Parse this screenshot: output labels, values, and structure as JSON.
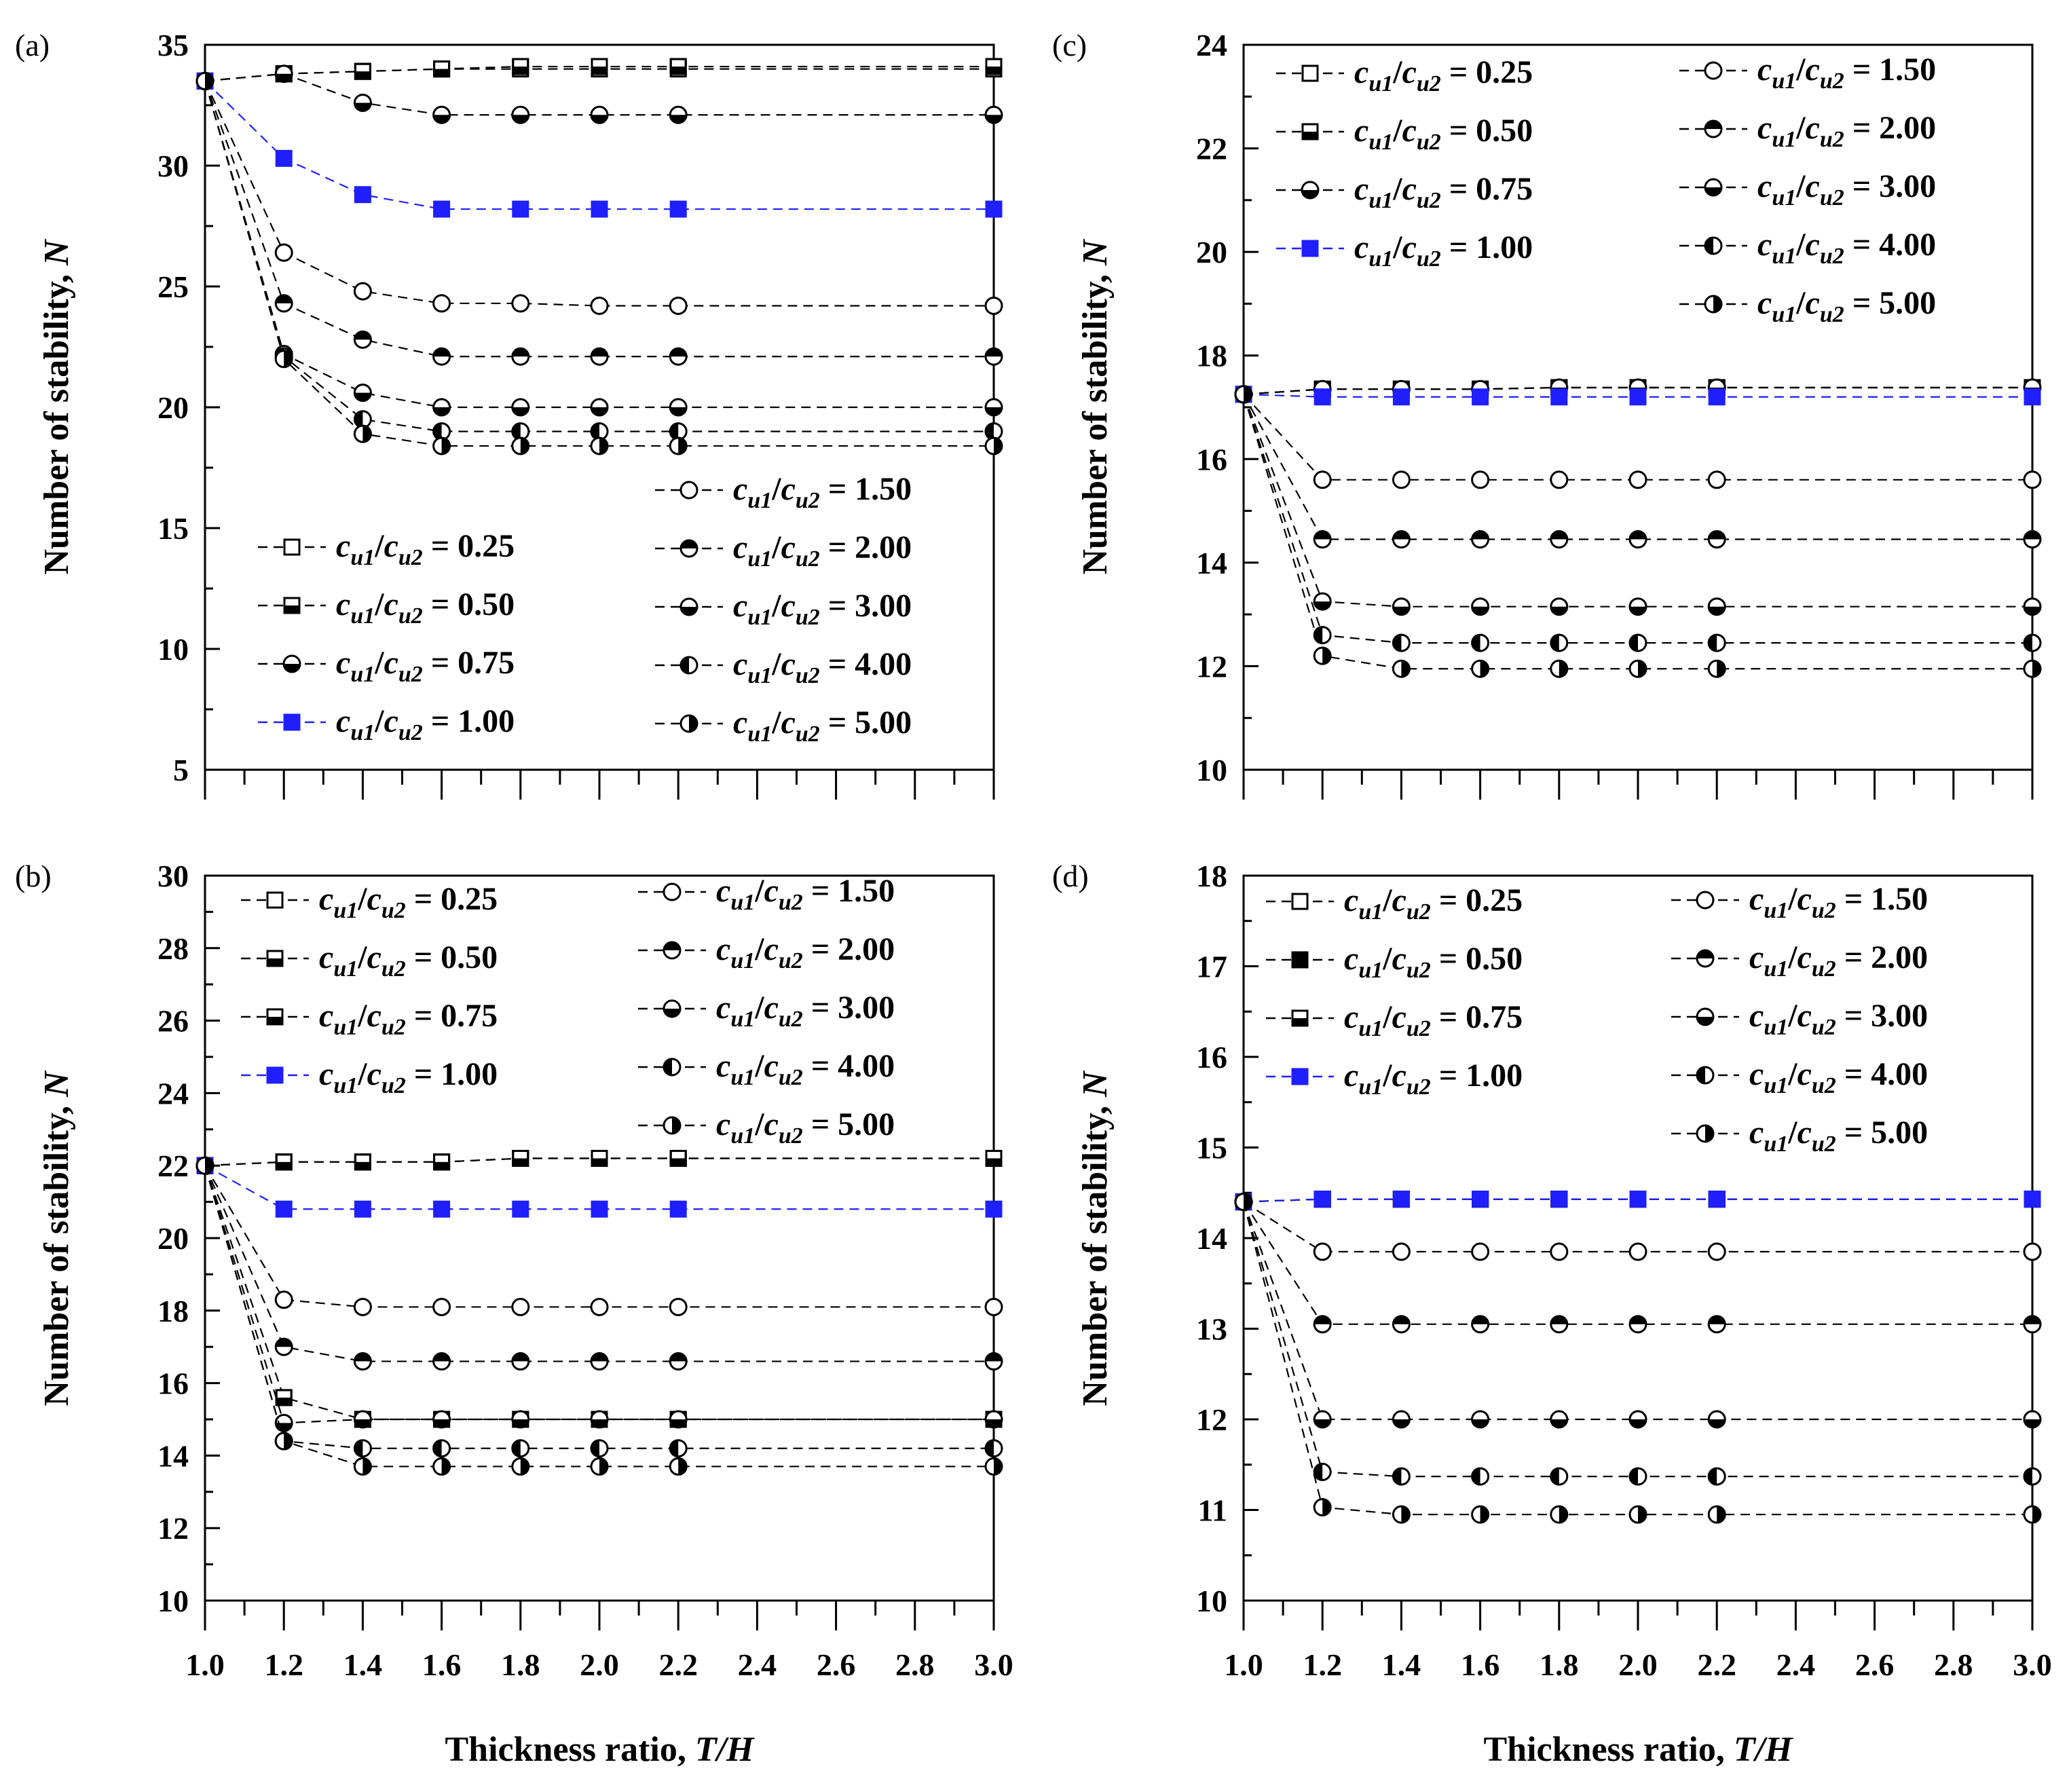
{
  "chart_data": [
    {
      "panel": "(a)",
      "type": "line",
      "xlabel": "Thickness ratio, T/H",
      "ylabel": "Number of stability, N",
      "x": [
        1.0,
        1.2,
        1.4,
        1.6,
        1.8,
        2.0,
        2.2,
        3.0
      ],
      "ylim": [
        5,
        35
      ],
      "yticks": [
        "5",
        "10",
        "15",
        "20",
        "25",
        "30",
        "35"
      ],
      "xticks": [],
      "legend": {
        "left": [
          0,
          1,
          2,
          3
        ],
        "right": [
          4,
          5,
          6,
          7,
          8
        ]
      },
      "series": [
        {
          "name": "0.25",
          "marker": "square-open",
          "color": "#000000",
          "values": [
            33.5,
            33.8,
            33.9,
            34.0,
            34.0,
            34.0,
            34.0,
            34.0
          ]
        },
        {
          "name": "0.50",
          "marker": "square-bottom",
          "color": "#000000",
          "values": [
            33.5,
            33.8,
            33.9,
            34.0,
            34.1,
            34.1,
            34.1,
            34.1
          ]
        },
        {
          "name": "0.75",
          "marker": "circle-bottom",
          "color": "#000000",
          "values": [
            33.5,
            33.8,
            32.6,
            32.1,
            32.1,
            32.1,
            32.1,
            32.1
          ]
        },
        {
          "name": "1.00",
          "marker": "square-filled",
          "color": "#1f1fff",
          "values": [
            33.5,
            30.3,
            28.8,
            28.2,
            28.2,
            28.2,
            28.2,
            28.2
          ]
        },
        {
          "name": "1.50",
          "marker": "circle-open",
          "color": "#000000",
          "values": [
            33.5,
            26.4,
            24.8,
            24.3,
            24.3,
            24.2,
            24.2,
            24.2
          ]
        },
        {
          "name": "2.00",
          "marker": "circle-top",
          "color": "#000000",
          "values": [
            33.5,
            24.3,
            22.8,
            22.1,
            22.1,
            22.1,
            22.1,
            22.1
          ]
        },
        {
          "name": "3.00",
          "marker": "circle-bottom",
          "color": "#000000",
          "values": [
            33.5,
            22.2,
            20.6,
            20.0,
            20.0,
            20.0,
            20.0,
            20.0
          ]
        },
        {
          "name": "4.00",
          "marker": "circle-left",
          "color": "#000000",
          "values": [
            33.5,
            22.1,
            19.5,
            19.0,
            19.0,
            19.0,
            19.0,
            19.0
          ]
        },
        {
          "name": "5.00",
          "marker": "circle-right",
          "color": "#000000",
          "values": [
            33.5,
            22.0,
            18.9,
            18.4,
            18.4,
            18.4,
            18.4,
            18.4
          ]
        }
      ]
    },
    {
      "panel": "(b)",
      "type": "line",
      "xlabel": "Thickness ratio, T/H",
      "ylabel": "Number of stability, N",
      "x": [
        1.0,
        1.2,
        1.4,
        1.6,
        1.8,
        2.0,
        2.2,
        3.0
      ],
      "ylim": [
        10,
        30
      ],
      "yticks": [
        "10",
        "12",
        "14",
        "16",
        "18",
        "20",
        "22",
        "24",
        "26",
        "28",
        "30"
      ],
      "xticks": [
        "1.0",
        "1.2",
        "1.4",
        "1.6",
        "1.8",
        "2.0",
        "2.2",
        "2.4",
        "2.6",
        "2.8",
        "3.0"
      ],
      "legend": {
        "left": [
          0,
          1,
          2,
          3
        ],
        "right": [
          4,
          5,
          6,
          7,
          8
        ]
      },
      "series": [
        {
          "name": "0.25",
          "marker": "square-open",
          "color": "#000000",
          "values": [
            22.0,
            22.1,
            22.1,
            22.1,
            22.2,
            22.2,
            22.2,
            22.2
          ]
        },
        {
          "name": "0.50",
          "marker": "square-bottom",
          "color": "#000000",
          "values": [
            22.0,
            22.1,
            22.1,
            22.1,
            22.2,
            22.2,
            22.2,
            22.2
          ]
        },
        {
          "name": "0.75",
          "marker": "square-bottom",
          "color": "#000000",
          "values": [
            22.0,
            15.6,
            15.0,
            15.0,
            15.0,
            15.0,
            15.0,
            15.0
          ]
        },
        {
          "name": "1.00",
          "marker": "square-filled",
          "color": "#1f1fff",
          "values": [
            22.0,
            20.8,
            20.8,
            20.8,
            20.8,
            20.8,
            20.8,
            20.8
          ]
        },
        {
          "name": "1.50",
          "marker": "circle-open",
          "color": "#000000",
          "values": [
            22.0,
            18.3,
            18.1,
            18.1,
            18.1,
            18.1,
            18.1,
            18.1
          ]
        },
        {
          "name": "2.00",
          "marker": "circle-top",
          "color": "#000000",
          "values": [
            22.0,
            17.0,
            16.6,
            16.6,
            16.6,
            16.6,
            16.6,
            16.6
          ]
        },
        {
          "name": "3.00",
          "marker": "circle-bottom",
          "color": "#000000",
          "values": [
            22.0,
            14.9,
            15.0,
            15.0,
            15.0,
            15.0,
            15.0,
            15.0
          ]
        },
        {
          "name": "4.00",
          "marker": "circle-left",
          "color": "#000000",
          "values": [
            22.0,
            14.4,
            14.2,
            14.2,
            14.2,
            14.2,
            14.2,
            14.2
          ]
        },
        {
          "name": "5.00",
          "marker": "circle-right",
          "color": "#000000",
          "values": [
            22.0,
            14.4,
            13.7,
            13.7,
            13.7,
            13.7,
            13.7,
            13.7
          ]
        }
      ]
    },
    {
      "panel": "(c)",
      "type": "line",
      "xlabel": "Thickness ratio, T/H",
      "ylabel": "Number of stability, N",
      "x": [
        1.0,
        1.2,
        1.4,
        1.6,
        1.8,
        2.0,
        2.2,
        3.0
      ],
      "ylim": [
        10,
        24
      ],
      "yticks": [
        "10",
        "12",
        "14",
        "16",
        "18",
        "20",
        "22",
        "24"
      ],
      "xticks": [],
      "legend": {
        "left": [
          0,
          1,
          2,
          3
        ],
        "right": [
          4,
          5,
          6,
          7,
          8
        ]
      },
      "series": [
        {
          "name": "0.25",
          "marker": "square-open",
          "color": "#000000",
          "values": [
            17.25,
            17.35,
            17.35,
            17.35,
            17.38,
            17.38,
            17.38,
            17.38
          ]
        },
        {
          "name": "0.50",
          "marker": "square-bottom",
          "color": "#000000",
          "values": [
            17.25,
            17.35,
            17.35,
            17.35,
            17.38,
            17.38,
            17.38,
            17.38
          ]
        },
        {
          "name": "0.75",
          "marker": "circle-bottom",
          "color": "#000000",
          "values": [
            17.25,
            17.35,
            17.35,
            17.35,
            17.38,
            17.38,
            17.38,
            17.38
          ]
        },
        {
          "name": "1.00",
          "marker": "square-filled",
          "color": "#1f1fff",
          "values": [
            17.25,
            17.2,
            17.2,
            17.2,
            17.2,
            17.2,
            17.2,
            17.2
          ]
        },
        {
          "name": "1.50",
          "marker": "circle-open",
          "color": "#000000",
          "values": [
            17.25,
            15.6,
            15.6,
            15.6,
            15.6,
            15.6,
            15.6,
            15.6
          ]
        },
        {
          "name": "2.00",
          "marker": "circle-top",
          "color": "#000000",
          "values": [
            17.25,
            14.45,
            14.45,
            14.45,
            14.45,
            14.45,
            14.45,
            14.45
          ]
        },
        {
          "name": "3.00",
          "marker": "circle-bottom",
          "color": "#000000",
          "values": [
            17.25,
            13.25,
            13.15,
            13.15,
            13.15,
            13.15,
            13.15,
            13.15
          ]
        },
        {
          "name": "4.00",
          "marker": "circle-left",
          "color": "#000000",
          "values": [
            17.25,
            12.6,
            12.45,
            12.45,
            12.45,
            12.45,
            12.45,
            12.45
          ]
        },
        {
          "name": "5.00",
          "marker": "circle-right",
          "color": "#000000",
          "values": [
            17.25,
            12.2,
            11.95,
            11.95,
            11.95,
            11.95,
            11.95,
            11.95
          ]
        }
      ]
    },
    {
      "panel": "(d)",
      "type": "line",
      "xlabel": "Thickness ratio, T/H",
      "ylabel": "Number of stability, N",
      "x": [
        1.0,
        1.2,
        1.4,
        1.6,
        1.8,
        2.0,
        2.2,
        3.0
      ],
      "ylim": [
        10,
        18
      ],
      "yticks": [
        "10",
        "11",
        "12",
        "13",
        "14",
        "15",
        "16",
        "17",
        "18"
      ],
      "xticks": [
        "1.0",
        "1.2",
        "1.4",
        "1.6",
        "1.8",
        "2.0",
        "2.2",
        "2.4",
        "2.6",
        "2.8",
        "3.0"
      ],
      "legend": {
        "left": [
          0,
          1,
          2,
          3
        ],
        "right": [
          4,
          5,
          6,
          7,
          8
        ]
      },
      "series": [
        {
          "name": "0.25",
          "marker": "square-open",
          "color": "#000000",
          "values": [
            14.4,
            14.43,
            14.43,
            14.43,
            14.43,
            14.43,
            14.43,
            14.43
          ]
        },
        {
          "name": "0.50",
          "marker": "square-filled",
          "color": "#000000",
          "values": [
            14.4,
            14.43,
            14.43,
            14.43,
            14.43,
            14.43,
            14.43,
            14.43
          ]
        },
        {
          "name": "0.75",
          "marker": "square-bottom",
          "color": "#000000",
          "values": [
            14.4,
            14.43,
            14.43,
            14.43,
            14.43,
            14.43,
            14.43,
            14.43
          ]
        },
        {
          "name": "1.00",
          "marker": "square-filled",
          "color": "#1f1fff",
          "values": [
            14.4,
            14.43,
            14.43,
            14.43,
            14.43,
            14.43,
            14.43,
            14.43
          ]
        },
        {
          "name": "1.50",
          "marker": "circle-open",
          "color": "#000000",
          "values": [
            14.4,
            13.85,
            13.85,
            13.85,
            13.85,
            13.85,
            13.85,
            13.85
          ]
        },
        {
          "name": "2.00",
          "marker": "circle-top",
          "color": "#000000",
          "values": [
            14.4,
            13.05,
            13.05,
            13.05,
            13.05,
            13.05,
            13.05,
            13.05
          ]
        },
        {
          "name": "3.00",
          "marker": "circle-bottom",
          "color": "#000000",
          "values": [
            14.4,
            12.0,
            12.0,
            12.0,
            12.0,
            12.0,
            12.0,
            12.0
          ]
        },
        {
          "name": "4.00",
          "marker": "circle-left",
          "color": "#000000",
          "values": [
            14.4,
            11.42,
            11.37,
            11.37,
            11.37,
            11.37,
            11.37,
            11.37
          ]
        },
        {
          "name": "5.00",
          "marker": "circle-right",
          "color": "#000000",
          "values": [
            14.4,
            11.03,
            10.95,
            10.95,
            10.95,
            10.95,
            10.95,
            10.95
          ]
        }
      ]
    }
  ],
  "legend_text": {
    "var_c": "c",
    "sub1": "u1",
    "sep": "/",
    "sub2": "u2",
    "eq": " = "
  }
}
